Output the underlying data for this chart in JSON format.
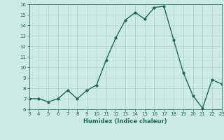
{
  "x": [
    3,
    4,
    5,
    6,
    7,
    8,
    9,
    10,
    11,
    12,
    13,
    14,
    15,
    16,
    17,
    18,
    19,
    20,
    21,
    22,
    23
  ],
  "y": [
    7,
    7,
    6.7,
    7,
    7.8,
    7,
    7.8,
    8.3,
    10.7,
    12.8,
    14.5,
    15.2,
    14.6,
    15.7,
    15.8,
    12.6,
    9.5,
    7.3,
    6.1,
    8.8,
    8.4
  ],
  "xlabel": "Humidex (Indice chaleur)",
  "ylim": [
    6,
    16
  ],
  "xlim": [
    3,
    23
  ],
  "yticks": [
    6,
    7,
    8,
    9,
    10,
    11,
    12,
    13,
    14,
    15,
    16
  ],
  "xticks": [
    3,
    4,
    5,
    6,
    7,
    8,
    9,
    10,
    11,
    12,
    13,
    14,
    15,
    16,
    17,
    18,
    19,
    20,
    21,
    22,
    23
  ],
  "line_color": "#1a6b5a",
  "bg_color": "#ceeae6",
  "grid_color": "#aad4cc",
  "marker": "o",
  "marker_size": 2.0,
  "linewidth": 1.0
}
